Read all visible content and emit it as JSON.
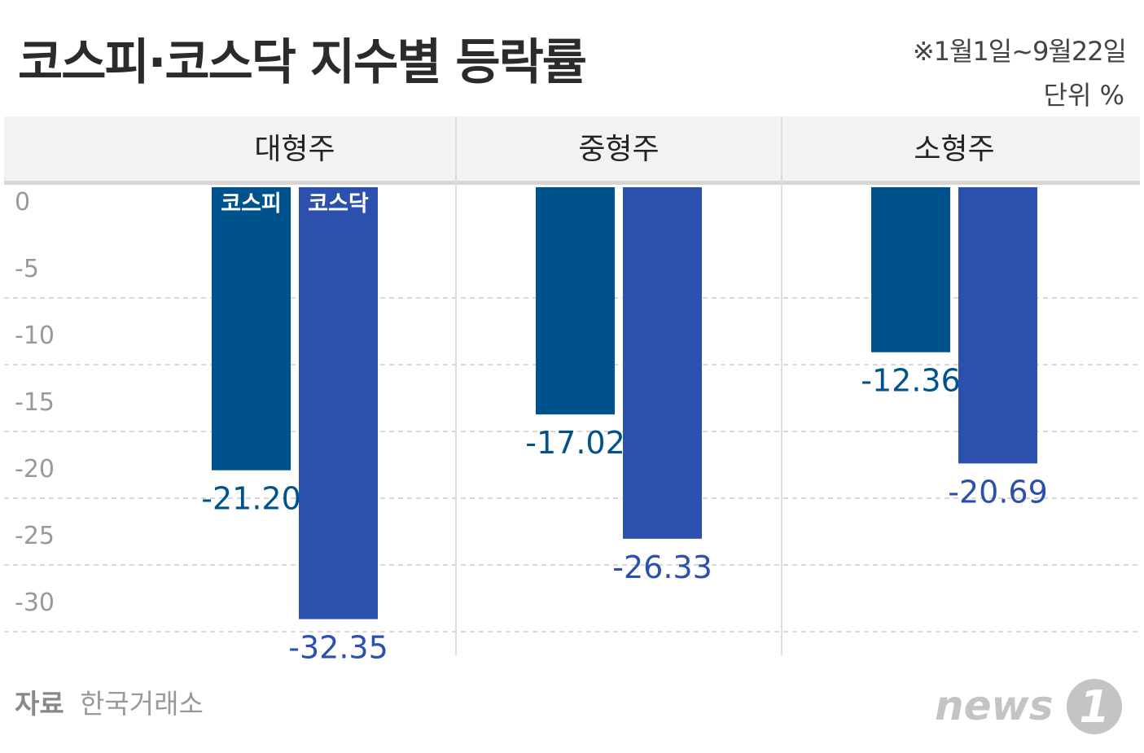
{
  "header": {
    "title": "코스피·코스닥 지수별 등락률",
    "period": "※1월1일~9월22일",
    "unit": "단위 %"
  },
  "source": {
    "label": "자료",
    "value": "한국거래소"
  },
  "logo": {
    "text": "news",
    "mark": "1"
  },
  "colors": {
    "kospi": "#00528c",
    "kosdaq": "#2b50ae",
    "header_bg": "#f2f2f2",
    "axis_text": "#999999",
    "grid": "#cccccc"
  },
  "chart_data": {
    "type": "bar",
    "categories": [
      "대형주",
      "중형주",
      "소형주"
    ],
    "series": [
      {
        "name": "코스피",
        "values": [
          -21.2,
          -17.02,
          -12.36
        ]
      },
      {
        "name": "코스닥",
        "values": [
          -32.35,
          -26.33,
          -20.69
        ]
      }
    ],
    "value_labels": [
      [
        "-21.20",
        "-17.02",
        "-12.36"
      ],
      [
        "-32.35",
        "-26.33",
        "-20.69"
      ]
    ],
    "ylim": [
      -33.5,
      0
    ],
    "yticks": [
      0,
      -5,
      -10,
      -15,
      -20,
      -25,
      -30
    ],
    "ytick_labels": [
      "0",
      "-5",
      "-10",
      "-15",
      "-20",
      "-25",
      "-30"
    ],
    "grid": true,
    "legend": "inside-bars-top"
  }
}
